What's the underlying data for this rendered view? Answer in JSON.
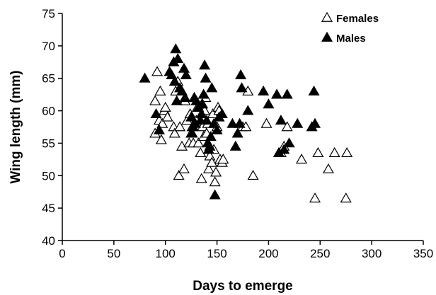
{
  "chart_data": {
    "type": "scatter",
    "xlabel": "Days to emerge",
    "ylabel": "Wing length (mm)",
    "xlim": [
      0,
      350
    ],
    "ylim": [
      40,
      75
    ],
    "xticks": [
      0,
      50,
      100,
      150,
      200,
      250,
      300,
      350
    ],
    "yticks": [
      40,
      45,
      50,
      55,
      60,
      65,
      70,
      75
    ],
    "grid": false,
    "legend_position": "top-right",
    "series": [
      {
        "name": "Females",
        "marker": "open-triangle",
        "color": "#000000",
        "points": [
          [
            90,
            56.5
          ],
          [
            90,
            61.5
          ],
          [
            92,
            66
          ],
          [
            94,
            58.5
          ],
          [
            95,
            63
          ],
          [
            96,
            55.5
          ],
          [
            97,
            58
          ],
          [
            99,
            60
          ],
          [
            100,
            60.5
          ],
          [
            102,
            59
          ],
          [
            108,
            57.5
          ],
          [
            109,
            56.5
          ],
          [
            110,
            63
          ],
          [
            112,
            64.5
          ],
          [
            113,
            50
          ],
          [
            114,
            57.5
          ],
          [
            116,
            54.5
          ],
          [
            118,
            51
          ],
          [
            119,
            61.5
          ],
          [
            121,
            58.5
          ],
          [
            123,
            55
          ],
          [
            124,
            59.5
          ],
          [
            125,
            56.5
          ],
          [
            126,
            57.5
          ],
          [
            127,
            55
          ],
          [
            128,
            62
          ],
          [
            130,
            58.5
          ],
          [
            131,
            60.5
          ],
          [
            132,
            55
          ],
          [
            134,
            53.5
          ],
          [
            135,
            49.5
          ],
          [
            136,
            57.5
          ],
          [
            137,
            56
          ],
          [
            138,
            60
          ],
          [
            139,
            62
          ],
          [
            140,
            56.5
          ],
          [
            141,
            58
          ],
          [
            142,
            51
          ],
          [
            143,
            53
          ],
          [
            145,
            52
          ],
          [
            146,
            59.5
          ],
          [
            147,
            54
          ],
          [
            148,
            49
          ],
          [
            149,
            50.5
          ],
          [
            150,
            57.5
          ],
          [
            151,
            60.5
          ],
          [
            152,
            60
          ],
          [
            153,
            52.5
          ],
          [
            155,
            52
          ],
          [
            156,
            52.5
          ],
          [
            175,
            57.5
          ],
          [
            178,
            57.5
          ],
          [
            180,
            63
          ],
          [
            185,
            50
          ],
          [
            198,
            58
          ],
          [
            210,
            53.5
          ],
          [
            212,
            53.5
          ],
          [
            215,
            54.5
          ],
          [
            218,
            57.5
          ],
          [
            232,
            52.5
          ],
          [
            245,
            46.5
          ],
          [
            248,
            53.5
          ],
          [
            258,
            51
          ],
          [
            264,
            53.5
          ],
          [
            275,
            46.5
          ],
          [
            276,
            53.5
          ]
        ]
      },
      {
        "name": "Males",
        "marker": "filled-triangle",
        "color": "#000000",
        "points": [
          [
            80,
            65
          ],
          [
            91,
            59.5
          ],
          [
            94,
            57
          ],
          [
            104,
            66
          ],
          [
            106,
            65.5
          ],
          [
            108,
            67.5
          ],
          [
            109,
            64.5
          ],
          [
            110,
            69.5
          ],
          [
            111,
            61.5
          ],
          [
            112,
            68
          ],
          [
            114,
            63.5
          ],
          [
            116,
            63
          ],
          [
            118,
            66.5
          ],
          [
            119,
            62
          ],
          [
            120,
            65.5
          ],
          [
            125,
            59
          ],
          [
            126,
            56.5
          ],
          [
            127,
            57.5
          ],
          [
            128,
            62
          ],
          [
            129,
            58
          ],
          [
            130,
            61.5
          ],
          [
            132,
            60.5
          ],
          [
            134,
            58.5
          ],
          [
            135,
            59.5
          ],
          [
            136,
            61
          ],
          [
            137,
            62.5
          ],
          [
            138,
            67
          ],
          [
            139,
            65
          ],
          [
            140,
            58.5
          ],
          [
            141,
            55
          ],
          [
            142,
            54
          ],
          [
            143,
            54.5
          ],
          [
            144,
            56
          ],
          [
            145,
            63.5
          ],
          [
            147,
            58
          ],
          [
            148,
            47
          ],
          [
            150,
            57
          ],
          [
            152,
            59
          ],
          [
            155,
            59.5
          ],
          [
            165,
            58
          ],
          [
            168,
            54.5
          ],
          [
            170,
            56.5
          ],
          [
            172,
            58
          ],
          [
            173,
            65.5
          ],
          [
            174,
            63.5
          ],
          [
            180,
            60
          ],
          [
            195,
            63
          ],
          [
            200,
            61
          ],
          [
            208,
            62.5
          ],
          [
            210,
            53.5
          ],
          [
            212,
            58.5
          ],
          [
            215,
            54
          ],
          [
            218,
            62.5
          ],
          [
            220,
            55
          ],
          [
            228,
            58
          ],
          [
            242,
            57.5
          ],
          [
            244,
            63
          ],
          [
            245,
            58
          ]
        ]
      }
    ]
  }
}
